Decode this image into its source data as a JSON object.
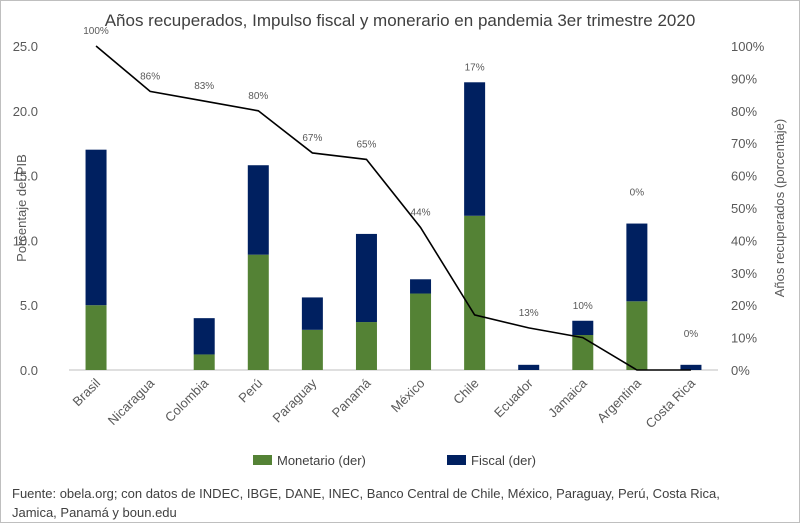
{
  "chart_data": {
    "type": "bar",
    "title": "Años recuperados, Impulso fiscal y monerario en pandemia 3er trimestre 2020",
    "ylabel": "Porcentaje del PIB",
    "y2label": "Años recuperados (porcentaje)",
    "ylim": [
      0,
      25
    ],
    "y2lim": [
      0,
      100
    ],
    "yticks": [
      "0.0",
      "5.0",
      "10.0",
      "15.0",
      "20.0",
      "25.0"
    ],
    "y2ticks": [
      "0%",
      "10%",
      "20%",
      "30%",
      "40%",
      "50%",
      "60%",
      "70%",
      "80%",
      "90%",
      "100%"
    ],
    "categories": [
      "Brasil",
      "Nicaragua",
      "Colombia",
      "Perú",
      "Paraguay",
      "Panamá",
      "México",
      "Chile",
      "Ecuador",
      "Jamaica",
      "Argentina",
      "Costa Rica"
    ],
    "stacked": true,
    "series": [
      {
        "name": "Monetario (der)",
        "color": "#548235",
        "values": [
          5.0,
          0,
          1.2,
          8.9,
          3.1,
          3.7,
          5.9,
          11.9,
          0,
          2.7,
          5.3,
          0
        ]
      },
      {
        "name": "Fiscal (der)",
        "color": "#002060",
        "values": [
          12.0,
          0,
          2.8,
          6.9,
          2.5,
          6.8,
          1.1,
          10.3,
          0.4,
          1.1,
          6.0,
          0.4
        ]
      }
    ],
    "line": {
      "values": [
        100,
        86,
        83,
        80,
        67,
        65,
        44,
        17,
        13,
        10,
        0,
        0
      ],
      "labels": [
        "100%",
        "86%",
        "83%",
        "80%",
        "67%",
        "65%",
        "44%",
        "17%",
        "13%",
        "10%",
        "0%",
        "0%"
      ],
      "color": "#000000"
    },
    "grid": false,
    "legend_position": "bottom"
  },
  "source_text": "Fuente: obela.org; con datos de INDEC, IBGE, DANE, INEC, Banco Central de Chile, México, Paraguay, Perú, Costa Rica, Jamica, Panamá y boun.edu"
}
